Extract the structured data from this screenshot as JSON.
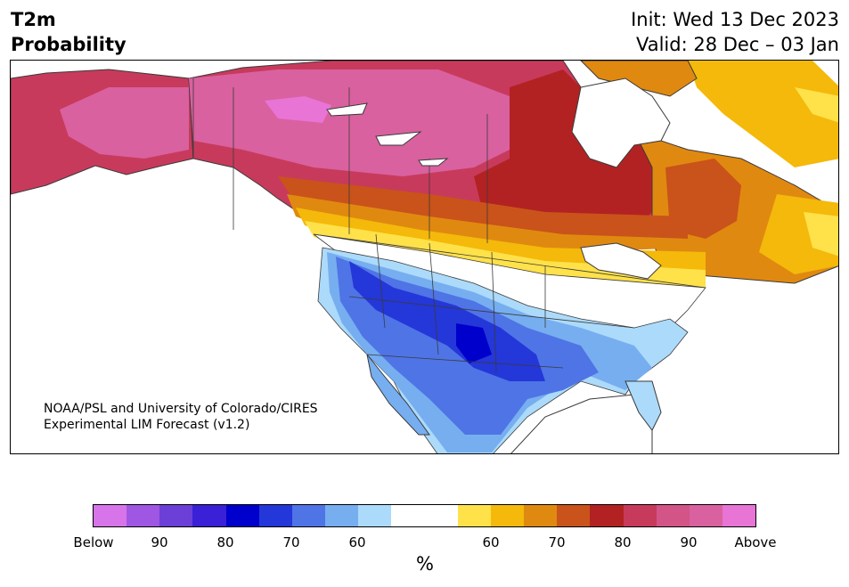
{
  "header": {
    "variable": "T2m",
    "product": "Probability",
    "init": "Init: Wed 13 Dec 2023",
    "valid": "Valid: 28 Dec – 03 Jan"
  },
  "credit": {
    "line1": "NOAA/PSL and University of Colorado/CIRES",
    "line2": "Experimental LIM Forecast (v1.2)"
  },
  "colorbar": {
    "colors": [
      "#d874ea",
      "#9f56e2",
      "#6c3fd8",
      "#3a20d6",
      "#0000cc",
      "#2437d9",
      "#4f74e6",
      "#76aef0",
      "#acdafa",
      "#ffffff",
      "#ffffff",
      "#ffe14a",
      "#f4b90a",
      "#e08910",
      "#c9531a",
      "#b22222",
      "#c83a5c",
      "#d35487",
      "#d9619f",
      "#e874d6"
    ],
    "tick_labels": [
      "Below",
      "90",
      "80",
      "70",
      "60",
      "60",
      "70",
      "80",
      "90",
      "Above"
    ],
    "unit": "%"
  },
  "map": {
    "region": "North America",
    "legend_warm": "Above",
    "legend_cold": "Below"
  }
}
